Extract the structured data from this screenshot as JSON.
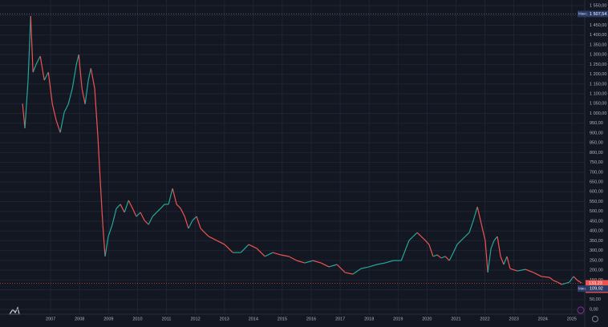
{
  "chart_data": {
    "type": "line",
    "x": [
      2006.03,
      2006.11,
      2006.22,
      2006.31,
      2006.39,
      2006.5,
      2006.64,
      2006.78,
      2006.92,
      2007.06,
      2007.19,
      2007.33,
      2007.47,
      2007.61,
      2007.75,
      2007.89,
      2007.97,
      2008.08,
      2008.19,
      2008.3,
      2008.39,
      2008.52,
      2008.63,
      2008.72,
      2008.8,
      2008.88,
      2008.99,
      2009.13,
      2009.27,
      2009.41,
      2009.55,
      2009.69,
      2009.83,
      2009.96,
      2010.1,
      2010.24,
      2010.38,
      2010.52,
      2010.66,
      2010.8,
      2010.93,
      2011.07,
      2011.21,
      2011.35,
      2011.49,
      2011.63,
      2011.76,
      2011.9,
      2012.04,
      2012.18,
      2012.32,
      2012.46,
      2012.73,
      2013.01,
      2013.29,
      2013.57,
      2013.84,
      2014.12,
      2014.4,
      2014.67,
      2014.95,
      2015.23,
      2015.5,
      2015.78,
      2016.06,
      2016.34,
      2016.61,
      2016.89,
      2017.17,
      2017.44,
      2017.72,
      2018.0,
      2018.27,
      2018.55,
      2018.83,
      2019.11,
      2019.38,
      2019.52,
      2019.66,
      2019.8,
      2019.94,
      2020.07,
      2020.21,
      2020.35,
      2020.49,
      2020.63,
      2020.77,
      2020.91,
      2021.04,
      2021.18,
      2021.32,
      2021.46,
      2021.6,
      2021.74,
      2021.88,
      2022.01,
      2022.1,
      2022.21,
      2022.32,
      2022.43,
      2022.54,
      2022.65,
      2022.76,
      2022.87,
      2023.12,
      2023.4,
      2023.68,
      2023.95,
      2024.23,
      2024.37,
      2024.51,
      2024.65,
      2024.92,
      2025.06,
      2025.2,
      2025.34
    ],
    "values": [
      1047,
      924,
      1169,
      1496,
      1210,
      1251,
      1292,
      1169,
      1210,
      1047,
      965,
      903,
      1006,
      1047,
      1128,
      1251,
      1300,
      1128,
      1047,
      1169,
      1230,
      1128,
      883,
      638,
      433,
      270,
      372,
      433,
      515,
      536,
      495,
      556,
      515,
      474,
      495,
      454,
      433,
      474,
      495,
      515,
      536,
      536,
      617,
      536,
      515,
      474,
      413,
      454,
      474,
      413,
      392,
      372,
      352,
      331,
      290,
      290,
      331,
      311,
      270,
      290,
      278,
      270,
      249,
      237,
      249,
      237,
      217,
      229,
      188,
      180,
      208,
      217,
      229,
      237,
      249,
      249,
      352,
      372,
      392,
      372,
      352,
      331,
      270,
      278,
      262,
      270,
      249,
      290,
      331,
      352,
      372,
      392,
      454,
      523,
      433,
      352,
      188,
      311,
      352,
      372,
      270,
      229,
      270,
      208,
      196,
      204,
      188,
      168,
      163,
      147,
      139,
      127,
      139,
      168,
      147,
      135
    ],
    "color_up": "#26a69a",
    "color_down": "#ef5350",
    "xlim": [
      2005.25,
      2025.42
    ],
    "xticks": [
      2007,
      2008,
      2009,
      2010,
      2011,
      2012,
      2013,
      2014,
      2015,
      2016,
      2017,
      2018,
      2019,
      2020,
      2021,
      2022,
      2023,
      2024,
      2025
    ],
    "ylim": [
      0,
      1550
    ],
    "yticks": [
      {
        "value": 0,
        "label": "0,00"
      },
      {
        "value": 50,
        "label": "50,00"
      },
      {
        "value": 100,
        "label": "100,00"
      },
      {
        "value": 150,
        "label": "150,00"
      },
      {
        "value": 200,
        "label": "200,00"
      },
      {
        "value": 250,
        "label": "250,00"
      },
      {
        "value": 300,
        "label": "300,00"
      },
      {
        "value": 350,
        "label": "350,00"
      },
      {
        "value": 400,
        "label": "400,00"
      },
      {
        "value": 450,
        "label": "450,00"
      },
      {
        "value": 500,
        "label": "500,00"
      },
      {
        "value": 550,
        "label": "550,00"
      },
      {
        "value": 600,
        "label": "600,00"
      },
      {
        "value": 650,
        "label": "650,00"
      },
      {
        "value": 700,
        "label": "700,00"
      },
      {
        "value": 750,
        "label": "750,00"
      },
      {
        "value": 800,
        "label": "800,00"
      },
      {
        "value": 850,
        "label": "850,00"
      },
      {
        "value": 900,
        "label": "900,00"
      },
      {
        "value": 950,
        "label": "950,00"
      },
      {
        "value": 1000,
        "label": "1 000,00"
      },
      {
        "value": 1050,
        "label": "1 050,00"
      },
      {
        "value": 1100,
        "label": "1 100,00"
      },
      {
        "value": 1150,
        "label": "1 150,00"
      },
      {
        "value": 1200,
        "label": "1 200,00"
      },
      {
        "value": 1250,
        "label": "1 250,00"
      },
      {
        "value": 1300,
        "label": "1 300,00"
      },
      {
        "value": 1350,
        "label": "1 350,00"
      },
      {
        "value": 1400,
        "label": "1 400,00"
      },
      {
        "value": 1450,
        "label": "1 450,00"
      },
      {
        "value": 1500,
        "label": "1 500,00"
      },
      {
        "value": 1550,
        "label": "1 550,00"
      }
    ],
    "grid": true,
    "max": {
      "text": "Макс.",
      "value": 1507.54,
      "label": "1 507,54"
    },
    "min": {
      "text": "Мин.",
      "value": 109.92,
      "label": "109,92"
    },
    "last": {
      "value": 133.23,
      "label": "133,23",
      "change": {
        "value": -61.79,
        "label": "-61,79%"
      }
    }
  }
}
